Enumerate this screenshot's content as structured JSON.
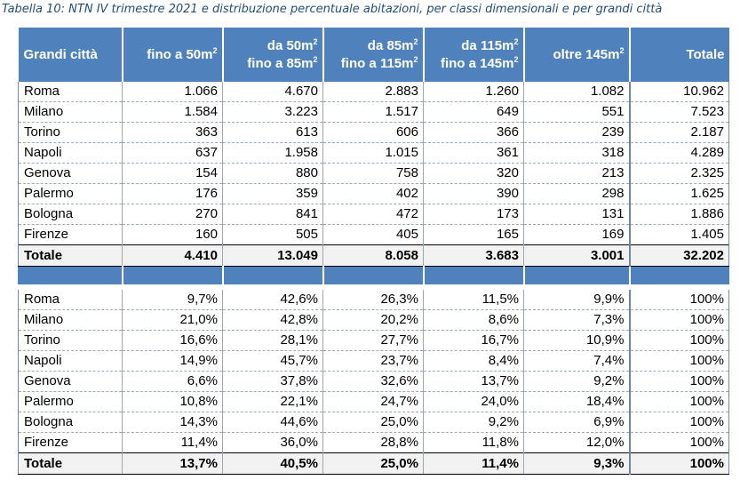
{
  "caption": "Tabella 10: NTN IV trimestre 2021 e distribuzione percentuale abitazioni, per classi dimensionali e per grandi città",
  "header": {
    "city": "Grandi città",
    "c1": "fino a 50m",
    "c2a": "da 50m",
    "c2b": "fino a 85m",
    "c3a": "da 85m",
    "c3b": "fino a 115m",
    "c4a": "da 115m",
    "c4b": "fino a 145m",
    "c5": "oltre 145m",
    "total": "Totale",
    "sup": "2"
  },
  "ntn_rows": [
    [
      "Roma",
      "1.066",
      "4.670",
      "2.883",
      "1.260",
      "1.082",
      "10.962"
    ],
    [
      "Milano",
      "1.584",
      "3.223",
      "1.517",
      "649",
      "551",
      "7.523"
    ],
    [
      "Torino",
      "363",
      "613",
      "606",
      "366",
      "239",
      "2.187"
    ],
    [
      "Napoli",
      "637",
      "1.958",
      "1.015",
      "361",
      "318",
      "4.289"
    ],
    [
      "Genova",
      "154",
      "880",
      "758",
      "320",
      "213",
      "2.325"
    ],
    [
      "Palermo",
      "176",
      "359",
      "402",
      "390",
      "298",
      "1.625"
    ],
    [
      "Bologna",
      "270",
      "841",
      "472",
      "173",
      "131",
      "1.886"
    ],
    [
      "Firenze",
      "160",
      "505",
      "405",
      "165",
      "169",
      "1.405"
    ]
  ],
  "ntn_total": [
    "Totale",
    "4.410",
    "13.049",
    "8.058",
    "3.683",
    "3.001",
    "32.202"
  ],
  "pct_rows": [
    [
      "Roma",
      "9,7%",
      "42,6%",
      "26,3%",
      "11,5%",
      "9,9%",
      "100%"
    ],
    [
      "Milano",
      "21,0%",
      "42,8%",
      "20,2%",
      "8,6%",
      "7,3%",
      "100%"
    ],
    [
      "Torino",
      "16,6%",
      "28,1%",
      "27,7%",
      "16,7%",
      "10,9%",
      "100%"
    ],
    [
      "Napoli",
      "14,9%",
      "45,7%",
      "23,7%",
      "8,4%",
      "7,4%",
      "100%"
    ],
    [
      "Genova",
      "6,6%",
      "37,8%",
      "32,6%",
      "13,7%",
      "9,2%",
      "100%"
    ],
    [
      "Palermo",
      "10,8%",
      "22,1%",
      "24,7%",
      "24,0%",
      "18,4%",
      "100%"
    ],
    [
      "Bologna",
      "14,3%",
      "44,6%",
      "25,0%",
      "9,2%",
      "6,9%",
      "100%"
    ],
    [
      "Firenze",
      "11,4%",
      "36,0%",
      "28,8%",
      "11,8%",
      "12,0%",
      "100%"
    ]
  ],
  "pct_total": [
    "Totale",
    "13,7%",
    "40,5%",
    "25,0%",
    "11,4%",
    "9,3%",
    "100%"
  ],
  "colors": {
    "header_bg": "#4f81bd",
    "caption": "#1f4e79",
    "total_bg": "#f2f2f2"
  }
}
